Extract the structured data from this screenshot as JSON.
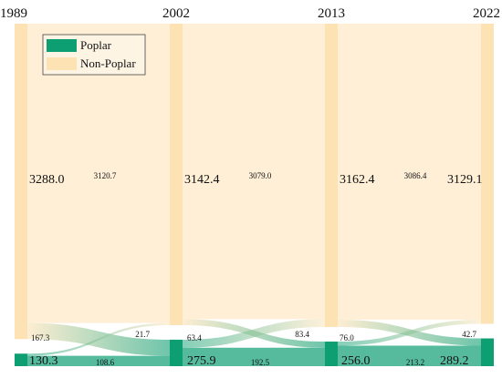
{
  "chart_data": {
    "type": "sankey",
    "years": [
      "1989",
      "2002",
      "2013",
      "2022"
    ],
    "legend": [
      {
        "name": "Poplar",
        "color": "#0d9e72"
      },
      {
        "name": "Non-Poplar",
        "color": "#fde2b4"
      }
    ],
    "nodes": [
      {
        "year": "1989",
        "non_poplar": 3288.0,
        "poplar": 130.3
      },
      {
        "year": "2002",
        "non_poplar": 3142.4,
        "poplar": 275.9
      },
      {
        "year": "2013",
        "non_poplar": 3162.4,
        "poplar": 256.0
      },
      {
        "year": "2022",
        "non_poplar": 3129.1,
        "poplar": 289.2
      }
    ],
    "flows": [
      {
        "period": "1989-2002",
        "nonpoplar_to_nonpoplar": 3120.7,
        "nonpoplar_to_poplar": 167.3,
        "poplar_to_nonpoplar": 21.7,
        "poplar_to_poplar": 108.6
      },
      {
        "period": "2002-2013",
        "nonpoplar_to_nonpoplar": 3079.0,
        "nonpoplar_to_poplar": 63.4,
        "poplar_to_nonpoplar": 83.4,
        "poplar_to_poplar": 192.5
      },
      {
        "period": "2013-2022",
        "nonpoplar_to_nonpoplar": 3086.4,
        "nonpoplar_to_poplar": 76.0,
        "poplar_to_nonpoplar": 42.7,
        "poplar_to_poplar": 213.2
      }
    ],
    "labels": {
      "nodes_np": [
        "3288.0",
        "3142.4",
        "3162.4",
        "3129.1"
      ],
      "nodes_p": [
        "130.3",
        "275.9",
        "256.0",
        "289.2"
      ],
      "np_np": [
        "3120.7",
        "3079.0",
        "3086.4"
      ],
      "np_p": [
        "167.3",
        "63.4",
        "76.0"
      ],
      "p_np": [
        "21.7",
        "83.4",
        "42.7"
      ],
      "p_p": [
        "108.6",
        "192.5",
        "213.2"
      ]
    }
  }
}
